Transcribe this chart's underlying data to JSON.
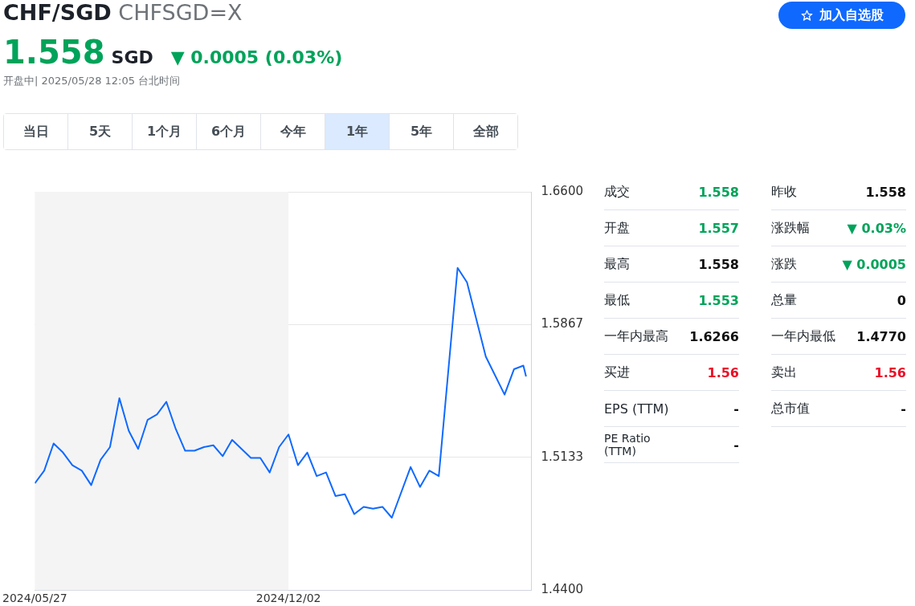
{
  "chart_data": [
    {
      "type": "line",
      "title": "CHF/SGD",
      "subtitle": "CHFSGD=X",
      "annotations": [
        "1.558",
        "SGD",
        "▼ 0.0005 (0.03%)",
        "开盘中| 2025/05/28 12:05 台北时间",
        "加入自选股",
        "当日",
        "5天",
        "1个月",
        "6个月",
        "今年",
        "1年",
        "5年",
        "全部"
      ],
      "x": [
        "2024-05-27",
        "2024-06-03",
        "2024-06-10",
        "2024-06-17",
        "2024-06-24",
        "2024-07-01",
        "2024-07-08",
        "2024-07-15",
        "2024-07-22",
        "2024-07-29",
        "2024-08-05",
        "2024-08-12",
        "2024-08-19",
        "2024-08-26",
        "2024-09-02",
        "2024-09-09",
        "2024-09-16",
        "2024-09-23",
        "2024-09-30",
        "2024-10-07",
        "2024-10-14",
        "2024-10-21",
        "2024-10-28",
        "2024-11-04",
        "2024-11-11",
        "2024-11-18",
        "2024-11-25",
        "2024-12-02",
        "2024-12-09",
        "2024-12-16",
        "2024-12-23",
        "2024-12-30",
        "2025-01-06",
        "2025-01-13",
        "2025-01-20",
        "2025-01-27",
        "2025-02-03",
        "2025-02-10",
        "2025-02-17",
        "2025-03-03",
        "2025-03-10",
        "2025-03-17",
        "2025-03-24",
        "2025-04-07",
        "2025-04-14",
        "2025-04-28",
        "2025-05-12",
        "2025-05-19",
        "2025-05-26",
        "2025-05-28"
      ],
      "series": [
        {
          "color": "#0f69ff",
          "values": [
            1.499,
            1.506,
            1.521,
            1.516,
            1.509,
            1.506,
            1.498,
            1.512,
            1.519,
            1.546,
            1.528,
            1.518,
            1.534,
            1.537,
            1.544,
            1.529,
            1.517,
            1.517,
            1.519,
            1.52,
            1.514,
            1.523,
            1.518,
            1.513,
            1.513,
            1.505,
            1.519,
            1.526,
            1.509,
            1.516,
            1.503,
            1.505,
            1.492,
            1.493,
            1.482,
            1.486,
            1.485,
            1.486,
            1.48,
            1.508,
            1.497,
            1.506,
            1.503,
            1.618,
            1.61,
            1.569,
            1.548,
            1.562,
            1.564,
            1.558
          ]
        }
      ],
      "xlim": [
        "2024-05-27",
        "2025-06-01"
      ],
      "xticks": [
        {
          "value": "2024-05-27",
          "label": "2024/05/27"
        },
        {
          "value": "2024-12-02",
          "label": "2024/12/02"
        }
      ],
      "ylim": [
        1.44,
        1.66
      ],
      "yticks": [
        {
          "value": 1.44,
          "label": "1.4400"
        },
        {
          "value": 1.5133,
          "label": "1.5133"
        },
        {
          "value": 1.5867,
          "label": "1.5867"
        },
        {
          "value": 1.66,
          "label": "1.6600"
        }
      ],
      "bands": [
        {
          "axis": "x",
          "from": "2024-05-27",
          "to": "2024-12-02",
          "color": "#f4f4f4"
        }
      ],
      "grid": "y",
      "line_style": "solid",
      "legend": false
    },
    {
      "type": "other",
      "categories": [
        "成交",
        "开盘",
        "最高",
        "最低",
        "一年内最高",
        "买进",
        "EPS (TTM)",
        "PE Ratio (TTM)",
        "昨收",
        "涨跌幅",
        "涨跌",
        "总量",
        "一年内最低",
        "卖出",
        "总市值"
      ],
      "value_labels": [
        "1.558",
        "1.557",
        "1.558",
        "1.553",
        "1.6266",
        "1.56",
        "-",
        "-",
        "1.558",
        "▼ 0.03%",
        "▼ 0.0005",
        "0",
        "1.4770",
        "1.56",
        "-"
      ],
      "colors": [
        "#00a35a",
        "#00a35a",
        "#111111",
        "#00a35a",
        "#111111",
        "#eb0f29",
        "#111111",
        "#111111",
        "#111111",
        "#00a35a",
        "#00a35a",
        "#111111",
        "#111111",
        "#eb0f29",
        "#111111"
      ]
    }
  ]
}
